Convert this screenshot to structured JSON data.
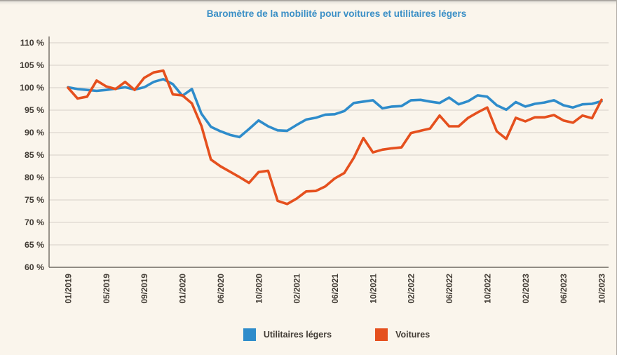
{
  "page": {
    "title": "Baromètre de la mobilité pour voitures et utilitaires légers",
    "background_color": "#faf5ec",
    "title_color": "#3a8fc6",
    "label_color": "#423c35",
    "grid_color": "#d5d0c8",
    "axis_color": "#6e6961"
  },
  "legend": [
    {
      "label": "Utilitaires légers",
      "color": "#2e8ccb"
    },
    {
      "label": "Voitures",
      "color": "#e5501e"
    }
  ],
  "chart_data": {
    "type": "line",
    "title": "Baromètre de la mobilité pour voitures et utilitaires légers",
    "xlabel": "",
    "ylabel": "",
    "y_unit": "%",
    "ylim": [
      60,
      110
    ],
    "ytick_step": 5,
    "ytick_labels": [
      "110 %",
      "105 %",
      "100 %",
      "95 %",
      "90 %",
      "85 %",
      "80 %",
      "75 %",
      "70 %",
      "65 %",
      "60 %"
    ],
    "grid": "horizontal",
    "legend_position": "bottom",
    "x_tick_every": 4,
    "x": [
      "01/2019",
      "02/2019",
      "03/2019",
      "04/2019",
      "05/2019",
      "06/2019",
      "07/2019",
      "08/2019",
      "09/2019",
      "10/2019",
      "11/2019",
      "12/2019",
      "01/2020",
      "02/2020",
      "03/2020",
      "05/2020",
      "06/2020",
      "07/2020",
      "08/2020",
      "09/2020",
      "10/2020",
      "11/2020",
      "12/2020",
      "01/2021",
      "02/2021",
      "03/2021",
      "04/2021",
      "05/2021",
      "06/2021",
      "07/2021",
      "08/2021",
      "09/2021",
      "10/2021",
      "11/2021",
      "12/2021",
      "01/2022",
      "02/2022",
      "03/2022",
      "04/2022",
      "05/2022",
      "06/2022",
      "07/2022",
      "08/2022",
      "09/2022",
      "10/2022",
      "11/2022",
      "12/2022",
      "01/2023",
      "02/2023",
      "03/2023",
      "04/2023",
      "05/2023",
      "06/2023",
      "07/2023",
      "08/2023",
      "09/2023",
      "10/2023"
    ],
    "series": [
      {
        "name": "Utilitaires légers",
        "color": "#2e8ccb",
        "values": [
          100.1,
          99.7,
          99.5,
          99.3,
          99.5,
          99.8,
          100.1,
          99.6,
          100.1,
          101.3,
          101.9,
          100.8,
          98.2,
          99.7,
          94.2,
          91.3,
          90.3,
          89.5,
          89.0,
          90.8,
          92.7,
          91.4,
          90.5,
          90.4,
          91.7,
          92.9,
          93.3,
          94.0,
          94.1,
          94.8,
          96.6,
          96.9,
          97.2,
          95.4,
          95.8,
          95.9,
          97.2,
          97.3,
          96.9,
          96.6,
          97.8,
          96.3,
          97.0,
          98.3,
          98.0,
          96.1,
          95.1,
          96.8,
          95.8,
          96.4,
          96.7,
          97.2,
          96.1,
          95.6,
          96.3,
          96.4,
          97.0
        ]
      },
      {
        "name": "Voitures",
        "color": "#e5501e",
        "values": [
          100.0,
          97.6,
          98.0,
          101.6,
          100.3,
          99.7,
          101.3,
          99.5,
          102.2,
          103.4,
          103.8,
          98.5,
          98.3,
          96.5,
          91.5,
          84.0,
          82.5,
          81.3,
          80.1,
          78.8,
          81.2,
          81.5,
          74.8,
          74.1,
          75.3,
          76.9,
          77.0,
          78.0,
          79.8,
          81.0,
          84.4,
          88.8,
          85.6,
          86.2,
          86.5,
          86.7,
          89.9,
          90.4,
          90.9,
          93.8,
          91.4,
          91.4,
          93.3,
          94.5,
          95.6,
          90.3,
          88.6,
          93.3,
          92.5,
          93.4,
          93.4,
          93.9,
          92.7,
          92.2,
          93.8,
          93.2,
          97.3
        ]
      }
    ]
  }
}
